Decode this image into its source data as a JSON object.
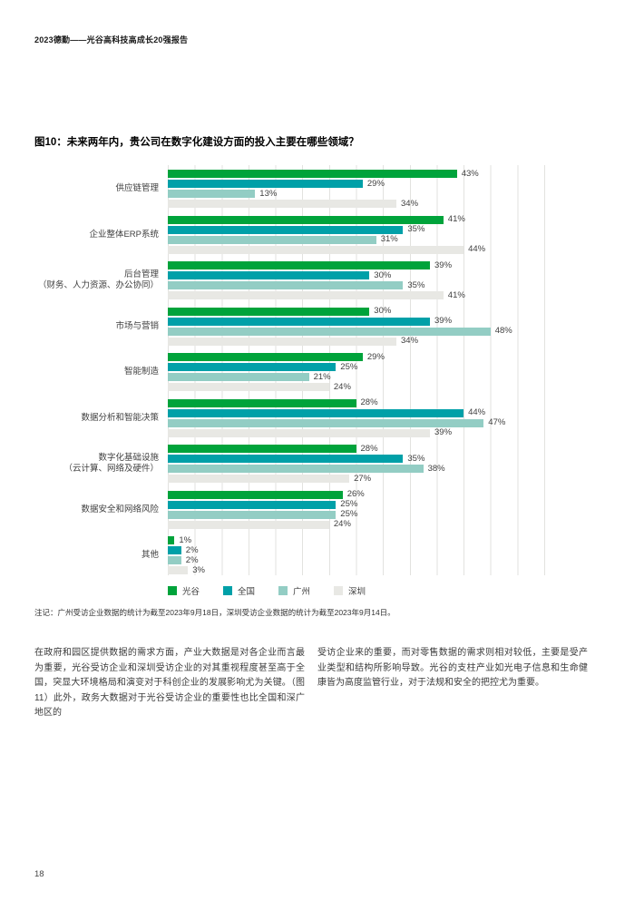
{
  "page": {
    "header": "2023德勤——光谷高科技高成长20强报告",
    "page_number": "18"
  },
  "chart": {
    "title": "图10：未来两年内，贵公司在数字化建设方面的投入主要在哪些领域？",
    "note": "注记：广州受访企业数据的统计为截至2023年9月18日，深圳受访企业数据的统计为截至2023年9月14日。"
  },
  "chart_data": {
    "type": "bar",
    "orientation": "horizontal",
    "title": "图10：未来两年内，贵公司在数字化建设方面的投入主要在哪些领域？",
    "categories": [
      [
        "供应链管理"
      ],
      [
        "企业整体ERP系统"
      ],
      [
        "后台管理",
        "（财务、人力资源、办公协同）"
      ],
      [
        "市场与营销"
      ],
      [
        "智能制造"
      ],
      [
        "数据分析和智能决策"
      ],
      [
        "数字化基础设施",
        "（云计算、网络及硬件）"
      ],
      [
        "数据安全和网络风险"
      ],
      [
        "其他"
      ]
    ],
    "series": [
      {
        "name": "光谷",
        "color": "#00A33B",
        "values": [
          43,
          41,
          39,
          30,
          29,
          28,
          28,
          26,
          1
        ]
      },
      {
        "name": "全国",
        "color": "#00A0A8",
        "values": [
          29,
          35,
          30,
          39,
          25,
          44,
          35,
          25,
          2
        ]
      },
      {
        "name": "广州",
        "color": "#93CDC4",
        "values": [
          13,
          31,
          35,
          48,
          21,
          47,
          38,
          25,
          2
        ]
      },
      {
        "name": "深圳",
        "color": "#E8E8E4",
        "values": [
          34,
          44,
          41,
          34,
          24,
          39,
          27,
          24,
          3
        ]
      }
    ],
    "value_suffix": "%",
    "xlim": [
      0,
      56
    ],
    "gridline_step": 4,
    "grid": true,
    "legend_position": "bottom",
    "gridline_color": "#e2e2df",
    "label_color": "#404040"
  },
  "body": {
    "left_column": "在政府和园区提供数据的需求方面，产业大数据是对各企业而言最为重要，光谷受访企业和深圳受访企业的对其重视程度甚至高于全国，突显大环境格局和演变对于科创企业的发展影响尤为关键。（图11）此外，政务大数据对于光谷受访企业的重要性也比全国和深广地区的",
    "right_column": "受访企业来的重要，而对零售数据的需求则相对较低，主要是受产业类型和结构所影响导致。光谷的支柱产业如光电子信息和生命健康皆为高度监管行业，对于法规和安全的把控尤为重要。"
  }
}
